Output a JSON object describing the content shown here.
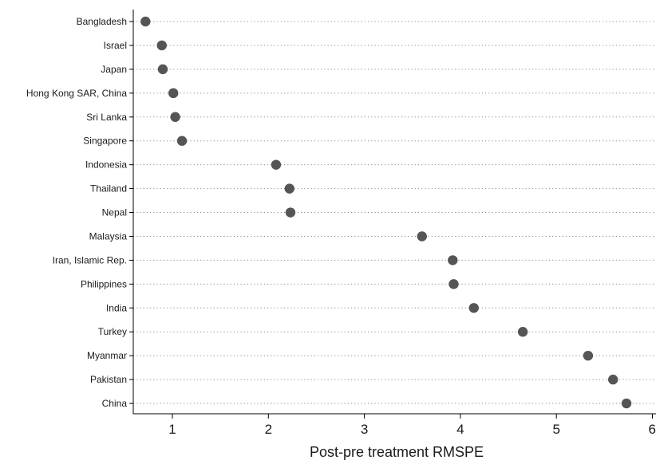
{
  "chart_data": {
    "type": "scatter",
    "title": "",
    "xlabel": "Post-pre treatment RMSPE",
    "ylabel": "",
    "xlim": [
      0.6,
      6.0
    ],
    "xticks": [
      1,
      2,
      3,
      4,
      5,
      6
    ],
    "grid": "dotted horizontal",
    "legend": "none",
    "marker_color": "#555555",
    "categories": [
      "Bangladesh",
      "Israel",
      "Japan",
      "Hong Kong SAR, China",
      "Sri Lanka",
      "Singapore",
      "Indonesia",
      "Thailand",
      "Nepal",
      "Malaysia",
      "Iran, Islamic Rep.",
      "Philippines",
      "India",
      "Turkey",
      "Myanmar",
      "Pakistan",
      "China"
    ],
    "values": [
      0.72,
      0.89,
      0.9,
      1.01,
      1.03,
      1.1,
      2.08,
      2.22,
      2.23,
      3.6,
      3.92,
      3.93,
      4.14,
      4.65,
      5.33,
      5.59,
      5.73
    ]
  }
}
